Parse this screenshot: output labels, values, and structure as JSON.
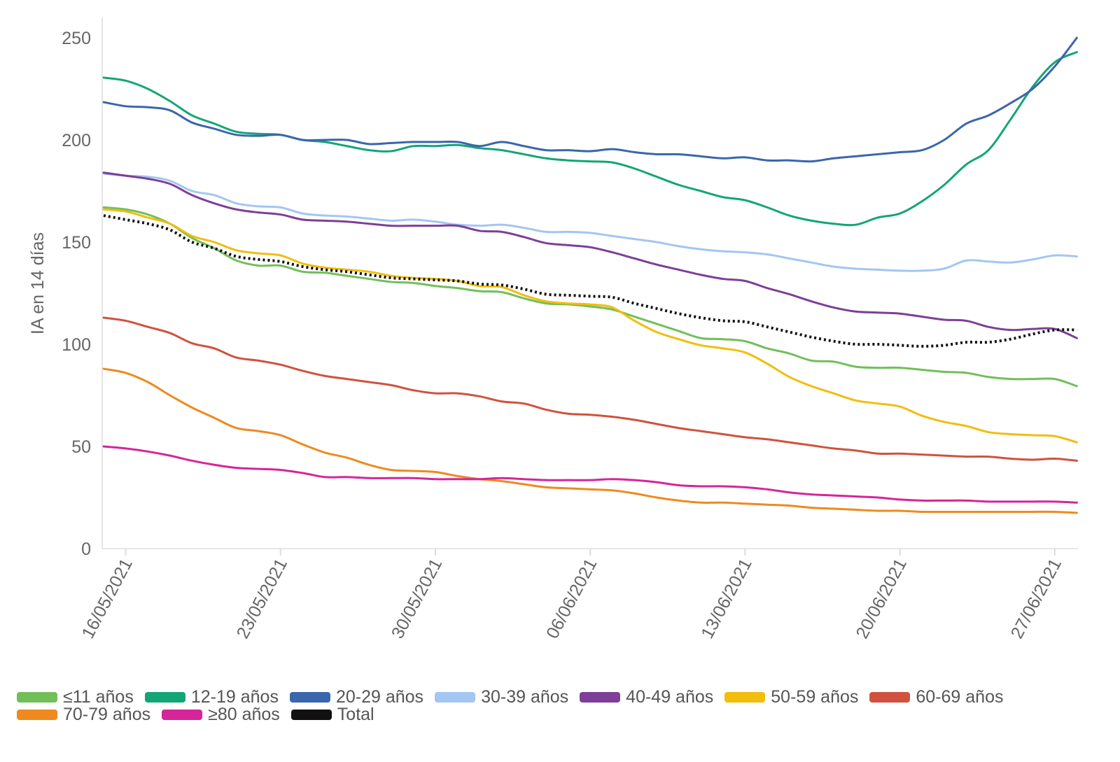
{
  "chart_data": {
    "type": "line",
    "title": "",
    "xlabel": "",
    "ylabel": "IA en 14 días",
    "ylim": [
      0,
      250
    ],
    "yticks": [
      "0",
      "50",
      "100",
      "150",
      "200",
      "250"
    ],
    "x_start": "15/05/2021",
    "x_end": "28/06/2021",
    "xticks": [
      "16/05/2021",
      "23/05/2021",
      "30/05/2021",
      "06/06/2021",
      "13/06/2021",
      "20/06/2021",
      "27/06/2021"
    ],
    "grid": false,
    "legend_position": "bottom",
    "series": [
      {
        "name": "≤11 años",
        "color": "#72bf5a",
        "values": [
          167,
          166,
          163.5,
          159,
          152,
          147,
          141,
          138.5,
          138.5,
          135.5,
          135,
          133.5,
          132,
          130.5,
          130,
          128.5,
          127.5,
          126,
          125.5,
          122.5,
          120,
          119.5,
          118.5,
          117,
          113.5,
          110,
          106.5,
          103,
          102.5,
          101.5,
          98,
          95.5,
          92,
          91.5,
          89,
          88.5,
          88.5,
          87.5,
          86.5,
          86,
          84,
          83,
          83,
          83,
          79.5
        ]
      },
      {
        "name": "12-19 años",
        "color": "#14a577",
        "values": [
          230.5,
          229,
          225,
          219,
          212,
          208,
          204,
          203,
          202.5,
          200,
          199,
          197,
          195,
          194.5,
          197,
          197,
          197.5,
          196,
          195,
          193,
          191,
          190,
          189.5,
          189,
          186,
          182,
          178,
          175,
          172,
          170.5,
          167,
          163,
          160.5,
          159,
          158.5,
          162,
          164,
          170,
          178,
          188,
          195,
          210,
          226,
          238,
          243
        ]
      },
      {
        "name": "20-29 años",
        "color": "#3a66ad",
        "values": [
          218.5,
          216.5,
          216,
          214.5,
          208.5,
          205.5,
          202.5,
          202,
          202.5,
          200,
          200,
          200,
          198,
          198.5,
          199,
          199,
          199,
          197,
          199,
          197,
          195,
          195,
          194.5,
          195.5,
          194,
          193,
          193,
          192,
          191,
          191.5,
          190,
          190,
          189.5,
          191,
          192,
          193,
          194,
          195,
          200,
          208,
          212,
          218,
          225,
          236,
          250
        ]
      },
      {
        "name": "30-39 años",
        "color": "#a3c6f2",
        "values": [
          183.5,
          182.5,
          182,
          180,
          175,
          173,
          169,
          167.5,
          167,
          164,
          163,
          162.5,
          161.5,
          160.5,
          161,
          160,
          158.5,
          158,
          158.5,
          157,
          155,
          155,
          154.5,
          153,
          151.5,
          150,
          148,
          146.5,
          145.5,
          145,
          144,
          142,
          140,
          138,
          137,
          136.5,
          136,
          136,
          137,
          141,
          140.5,
          140,
          141.5,
          143.5,
          143
        ]
      },
      {
        "name": "40-49 años",
        "color": "#7d3f98",
        "values": [
          184,
          182.5,
          181,
          178.5,
          173,
          169,
          166,
          164.5,
          163.5,
          161,
          160.5,
          160,
          159,
          158,
          158,
          158,
          158,
          155.5,
          155,
          152.5,
          149.5,
          148.5,
          147.5,
          145,
          142,
          139,
          136.5,
          134,
          132,
          131,
          127.5,
          124.5,
          121,
          118,
          116,
          115.5,
          115,
          113.5,
          112,
          111.5,
          108.5,
          107,
          107.5,
          107.5,
          103
        ]
      },
      {
        "name": "50-59 años",
        "color": "#f2bd0c",
        "values": [
          166,
          165,
          162,
          159,
          153,
          150,
          146,
          144.5,
          143.5,
          139.5,
          137.5,
          136.5,
          135.5,
          133.5,
          132.5,
          132,
          131,
          128.5,
          128,
          124,
          121,
          120,
          119.5,
          118,
          111.5,
          106,
          102.5,
          99.5,
          98,
          96,
          90.5,
          84,
          79.5,
          76,
          72.5,
          71,
          69.5,
          65,
          62,
          60,
          57,
          56,
          55.5,
          55,
          52
        ]
      },
      {
        "name": "60-69 años",
        "color": "#d0523e",
        "values": [
          113,
          111.5,
          108.5,
          105.5,
          100.5,
          98,
          93.5,
          92,
          90,
          87,
          84.5,
          83,
          81.5,
          80,
          77.5,
          76,
          76,
          74.5,
          72,
          71,
          68,
          66,
          65.5,
          64.5,
          63,
          61,
          59,
          57.5,
          56,
          54.5,
          53.5,
          52,
          50.5,
          49,
          48,
          46.5,
          46.5,
          46,
          45.5,
          45,
          45,
          44,
          43.5,
          44,
          43
        ]
      },
      {
        "name": "70-79 años",
        "color": "#ee8a1f",
        "values": [
          88,
          86,
          81.5,
          75,
          69,
          64,
          59,
          57.5,
          55.5,
          51,
          47,
          44.5,
          41,
          38.5,
          38,
          37.5,
          35.5,
          34,
          33,
          31.5,
          30,
          29.5,
          29,
          28.5,
          27,
          25,
          23.5,
          22.5,
          22.5,
          22,
          21.5,
          21,
          20,
          19.5,
          19,
          18.5,
          18.5,
          18,
          18,
          18,
          18,
          18,
          18,
          18,
          17.5
        ]
      },
      {
        "name": "≥80 años",
        "color": "#d6259a",
        "values": [
          50,
          49,
          47.5,
          45.5,
          43,
          41,
          39.5,
          39,
          38.5,
          37,
          35,
          35,
          34.5,
          34.5,
          34.5,
          34,
          34,
          34,
          34.5,
          34,
          33.5,
          33.5,
          33.5,
          34,
          33.5,
          32.5,
          31,
          30.5,
          30.5,
          30,
          29,
          27.5,
          26.5,
          26,
          25.5,
          25,
          24,
          23.5,
          23.5,
          23.5,
          23,
          23,
          23,
          23,
          22.5
        ]
      },
      {
        "name": "Total",
        "color": "#111111",
        "dashed": true,
        "values": [
          163,
          161,
          159,
          156,
          150,
          147,
          143,
          141.5,
          140.5,
          138,
          136.5,
          135.5,
          134,
          132.5,
          132,
          131.5,
          131,
          129.5,
          129,
          127,
          124.5,
          124,
          123.5,
          123,
          120,
          117.5,
          115,
          113,
          111.5,
          111,
          108.5,
          106,
          103.5,
          101.5,
          100,
          100,
          99.5,
          99,
          99.5,
          101,
          101,
          102.5,
          105,
          107,
          107
        ]
      }
    ]
  }
}
